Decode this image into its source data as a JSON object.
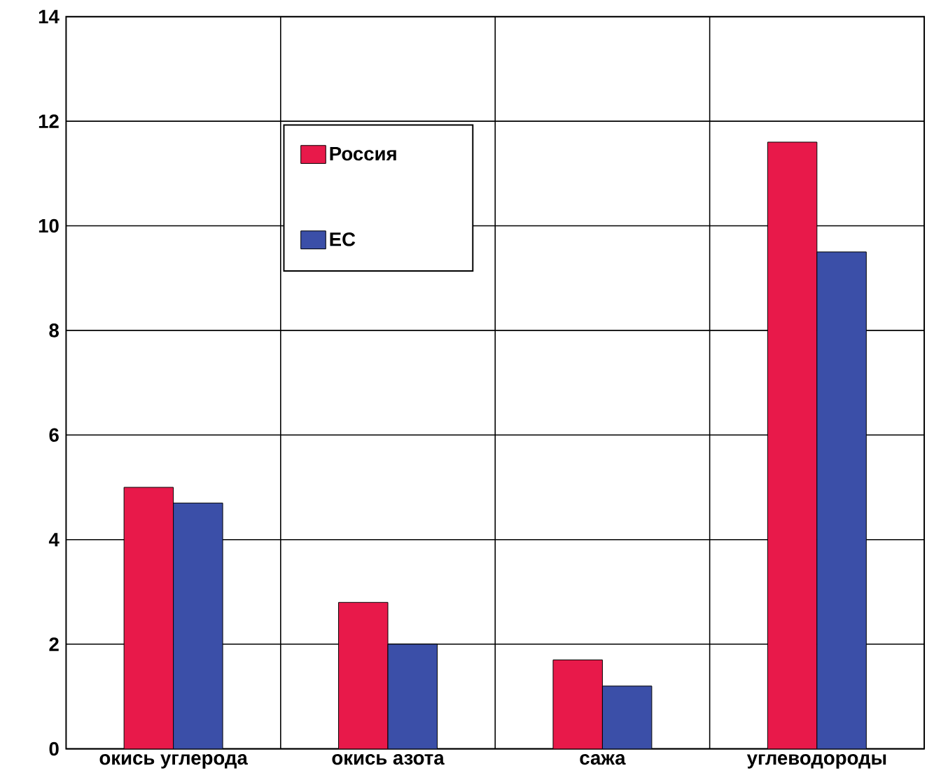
{
  "chart_data": {
    "type": "bar",
    "categories": [
      "окись углерода",
      "окись азота",
      "сажа",
      "углеводороды"
    ],
    "series": [
      {
        "name": "Россия",
        "color": "#e8194a",
        "values": [
          5.0,
          2.8,
          1.7,
          11.6
        ]
      },
      {
        "name": "ЕС",
        "color": "#3b4fa8",
        "values": [
          4.7,
          2.0,
          1.2,
          9.5
        ]
      }
    ],
    "ylim": [
      0,
      14
    ],
    "yticks": [
      0,
      2,
      4,
      6,
      8,
      10,
      12,
      14
    ],
    "grid": true,
    "legend": "top left"
  }
}
